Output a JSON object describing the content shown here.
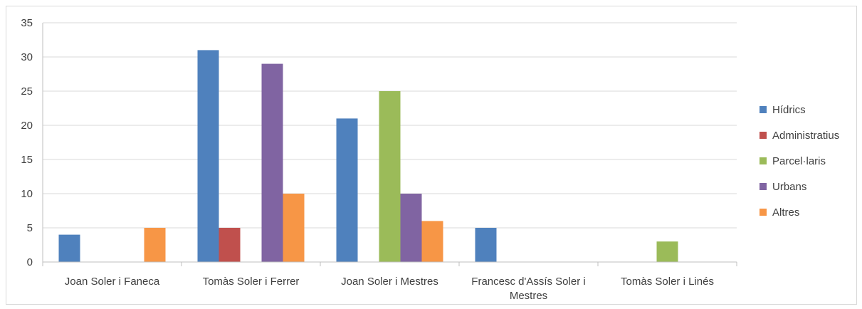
{
  "chart_data": {
    "type": "bar",
    "categories": [
      "Joan Soler i Faneca",
      "Tomàs Soler i Ferrer",
      "Joan Soler i Mestres",
      "Francesc d'Assís Soler i Mestres",
      "Tomàs Soler i Linés"
    ],
    "category_lines": [
      [
        "Joan Soler i Faneca"
      ],
      [
        "Tomàs Soler i Ferrer"
      ],
      [
        "Joan Soler i Mestres"
      ],
      [
        "Francesc d'Assís Soler i",
        "Mestres"
      ],
      [
        "Tomàs Soler i Linés"
      ]
    ],
    "series": [
      {
        "name": "Hídrics",
        "color": "#4f81bd",
        "values": [
          4,
          31,
          21,
          5,
          0
        ]
      },
      {
        "name": "Administratius",
        "color": "#c0504d",
        "values": [
          0,
          5,
          0,
          0,
          0
        ]
      },
      {
        "name": "Parcel·laris",
        "color": "#9bbb59",
        "values": [
          0,
          0,
          25,
          0,
          3
        ]
      },
      {
        "name": "Urbans",
        "color": "#8064a2",
        "values": [
          0,
          29,
          10,
          0,
          0
        ]
      },
      {
        "name": "Altres",
        "color": "#f79646",
        "values": [
          5,
          10,
          6,
          0,
          0
        ]
      }
    ],
    "ylim": [
      0,
      35
    ],
    "yticks": [
      0,
      5,
      10,
      15,
      20,
      25,
      30,
      35
    ],
    "grid": true,
    "legend": "right"
  }
}
